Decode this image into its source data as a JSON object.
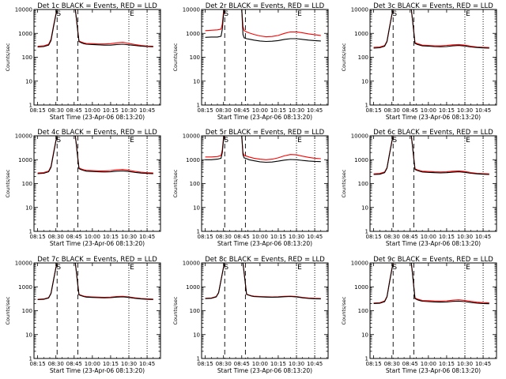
{
  "figure": {
    "xlabel": "Start Time (23-Apr-06 08:13:20)",
    "ylabel": "Counts/sec",
    "x_ticks": [
      "08:15",
      "08:30",
      "08:45",
      "10:00",
      "10:15",
      "10:30",
      "10:45"
    ],
    "y_ticks": [
      "1",
      "10",
      "100",
      "1000",
      "10000"
    ],
    "marker_labels": [
      "S",
      "E"
    ],
    "colors": {
      "events": "#000000",
      "lld": "#ff0000",
      "axes": "#000000"
    }
  },
  "chart_data": [
    {
      "type": "line",
      "title": "Det 1c BLACK = Events, RED = LLD",
      "ylim": [
        1,
        10000
      ],
      "y_scale": "log",
      "x_minutes": [
        0,
        5,
        9,
        11,
        13,
        15,
        16,
        18,
        20,
        30,
        31,
        33,
        34,
        36,
        38,
        40,
        45,
        50,
        55,
        60,
        65,
        70,
        75,
        80,
        85,
        90,
        95
      ],
      "series": [
        {
          "name": "Events",
          "values": [
            270,
            280,
            320,
            500,
            1800,
            6000,
            10000,
            10000,
            10000,
            10000,
            10000,
            1200,
            450,
            400,
            370,
            350,
            340,
            330,
            320,
            320,
            340,
            350,
            330,
            310,
            290,
            280,
            275
          ]
        },
        {
          "name": "LLD",
          "values": [
            290,
            300,
            350,
            560,
            2000,
            6500,
            10000,
            10000,
            10000,
            10000,
            10000,
            1300,
            480,
            430,
            400,
            380,
            370,
            360,
            360,
            370,
            400,
            420,
            380,
            340,
            310,
            295,
            290
          ]
        }
      ]
    },
    {
      "type": "line",
      "title": "Det 2r BLACK = Events, RED = LLD",
      "ylim": [
        1,
        10000
      ],
      "y_scale": "log",
      "x_minutes": [
        0,
        5,
        10,
        13,
        14,
        15,
        16,
        17,
        18,
        20,
        30,
        31,
        32,
        34,
        36,
        40,
        45,
        50,
        55,
        60,
        65,
        70,
        75,
        80,
        85,
        90,
        95
      ],
      "series": [
        {
          "name": "Events",
          "values": [
            680,
            700,
            700,
            760,
            1500,
            6000,
            10000,
            10000,
            10000,
            10000,
            10000,
            900,
            650,
            600,
            570,
            520,
            480,
            460,
            470,
            500,
            560,
            600,
            600,
            560,
            520,
            500,
            480
          ]
        },
        {
          "name": "LLD",
          "values": [
            1300,
            1350,
            1400,
            1500,
            2500,
            8000,
            10000,
            10000,
            10000,
            10000,
            10000,
            2000,
            1300,
            1150,
            1050,
            900,
            780,
            720,
            740,
            820,
            1000,
            1150,
            1150,
            1050,
            950,
            880,
            820
          ]
        }
      ]
    },
    {
      "type": "line",
      "title": "Det 3c BLACK = Events, RED = LLD",
      "ylim": [
        1,
        10000
      ],
      "y_scale": "log",
      "x_minutes": [
        0,
        5,
        9,
        11,
        13,
        15,
        16,
        18,
        20,
        30,
        31,
        33,
        34,
        36,
        38,
        40,
        45,
        50,
        55,
        60,
        65,
        70,
        75,
        80,
        85,
        90,
        95
      ],
      "series": [
        {
          "name": "Events",
          "values": [
            240,
            250,
            290,
            450,
            1700,
            6000,
            10000,
            10000,
            10000,
            10000,
            10000,
            1100,
            380,
            340,
            320,
            300,
            290,
            280,
            275,
            280,
            300,
            310,
            295,
            270,
            255,
            245,
            240
          ]
        },
        {
          "name": "LLD",
          "values": [
            260,
            270,
            310,
            480,
            1800,
            6200,
            10000,
            10000,
            10000,
            10000,
            10000,
            1200,
            410,
            370,
            345,
            320,
            310,
            300,
            300,
            310,
            330,
            340,
            320,
            290,
            270,
            260,
            255
          ]
        }
      ]
    },
    {
      "type": "line",
      "title": "Det 4c BLACK = Events, RED = LLD",
      "ylim": [
        1,
        10000
      ],
      "y_scale": "log",
      "x_minutes": [
        0,
        5,
        9,
        11,
        13,
        15,
        16,
        18,
        20,
        30,
        31,
        33,
        34,
        36,
        38,
        40,
        45,
        50,
        55,
        60,
        65,
        70,
        75,
        80,
        85,
        90,
        95
      ],
      "series": [
        {
          "name": "Events",
          "values": [
            260,
            270,
            310,
            480,
            1700,
            6000,
            10000,
            10000,
            10000,
            10000,
            10000,
            1150,
            420,
            380,
            350,
            330,
            320,
            310,
            305,
            310,
            330,
            340,
            320,
            295,
            275,
            265,
            260
          ]
        },
        {
          "name": "LLD",
          "values": [
            280,
            290,
            335,
            520,
            1900,
            6400,
            10000,
            10000,
            10000,
            10000,
            10000,
            1250,
            450,
            410,
            380,
            360,
            350,
            340,
            340,
            350,
            375,
            390,
            360,
            325,
            300,
            285,
            280
          ]
        }
      ]
    },
    {
      "type": "line",
      "title": "Det 5r BLACK = Events, RED = LLD",
      "ylim": [
        1,
        10000
      ],
      "y_scale": "log",
      "x_minutes": [
        0,
        5,
        10,
        13,
        14,
        15,
        16,
        17,
        18,
        20,
        30,
        31,
        32,
        34,
        36,
        40,
        45,
        50,
        55,
        60,
        65,
        70,
        75,
        80,
        85,
        90,
        95
      ],
      "series": [
        {
          "name": "Events",
          "values": [
            1000,
            1000,
            1050,
            1150,
            2000,
            7000,
            10000,
            10000,
            10000,
            10000,
            10000,
            1600,
            1200,
            1100,
            1000,
            900,
            820,
            780,
            800,
            870,
            960,
            1020,
            1000,
            930,
            880,
            850,
            830
          ]
        },
        {
          "name": "LLD",
          "values": [
            1300,
            1300,
            1350,
            1500,
            2600,
            8500,
            10000,
            10000,
            10000,
            10000,
            10000,
            2000,
            1500,
            1400,
            1300,
            1150,
            1050,
            1000,
            1050,
            1200,
            1450,
            1650,
            1600,
            1400,
            1250,
            1150,
            1100
          ]
        }
      ]
    },
    {
      "type": "line",
      "title": "Det 6c BLACK = Events, RED = LLD",
      "ylim": [
        1,
        10000
      ],
      "y_scale": "log",
      "x_minutes": [
        0,
        5,
        9,
        11,
        13,
        15,
        16,
        18,
        20,
        30,
        31,
        33,
        34,
        36,
        38,
        40,
        45,
        50,
        55,
        60,
        65,
        70,
        75,
        80,
        85,
        90,
        95
      ],
      "series": [
        {
          "name": "Events",
          "values": [
            240,
            245,
            285,
            440,
            1650,
            5800,
            10000,
            10000,
            10000,
            10000,
            10000,
            1100,
            390,
            350,
            325,
            305,
            295,
            285,
            280,
            285,
            300,
            310,
            295,
            270,
            255,
            245,
            240
          ]
        },
        {
          "name": "LLD",
          "values": [
            255,
            265,
            305,
            470,
            1750,
            6100,
            10000,
            10000,
            10000,
            10000,
            10000,
            1180,
            415,
            375,
            350,
            330,
            320,
            310,
            305,
            310,
            330,
            340,
            320,
            290,
            270,
            260,
            255
          ]
        }
      ]
    },
    {
      "type": "line",
      "title": "Det 7c BLACK = Events, RED = LLD",
      "ylim": [
        1,
        10000
      ],
      "y_scale": "log",
      "x_minutes": [
        0,
        5,
        9,
        11,
        13,
        15,
        16,
        18,
        20,
        30,
        31,
        33,
        34,
        36,
        38,
        40,
        45,
        50,
        55,
        60,
        65,
        70,
        75,
        80,
        85,
        90,
        95
      ],
      "series": [
        {
          "name": "Events",
          "values": [
            290,
            300,
            340,
            520,
            1800,
            6200,
            10000,
            10000,
            10000,
            10000,
            10000,
            1200,
            460,
            420,
            390,
            370,
            360,
            350,
            345,
            350,
            370,
            380,
            360,
            330,
            310,
            300,
            295
          ]
        },
        {
          "name": "LLD",
          "values": [
            300,
            310,
            355,
            545,
            1900,
            6400,
            10000,
            10000,
            10000,
            10000,
            10000,
            1250,
            480,
            440,
            410,
            390,
            380,
            370,
            365,
            370,
            390,
            400,
            380,
            345,
            325,
            315,
            305
          ]
        }
      ]
    },
    {
      "type": "line",
      "title": "Det 8c BLACK = Events, RED = LLD",
      "ylim": [
        1,
        10000
      ],
      "y_scale": "log",
      "x_minutes": [
        0,
        5,
        9,
        11,
        13,
        15,
        16,
        18,
        20,
        30,
        31,
        33,
        34,
        36,
        38,
        40,
        45,
        50,
        55,
        60,
        65,
        70,
        75,
        80,
        85,
        90,
        95
      ],
      "series": [
        {
          "name": "Events",
          "values": [
            320,
            330,
            380,
            560,
            1900,
            6500,
            10000,
            10000,
            10000,
            10000,
            10000,
            1300,
            480,
            440,
            410,
            390,
            380,
            370,
            365,
            370,
            385,
            395,
            375,
            345,
            325,
            315,
            310
          ]
        },
        {
          "name": "LLD",
          "values": [
            330,
            340,
            395,
            580,
            1950,
            6700,
            10000,
            10000,
            10000,
            10000,
            10000,
            1350,
            495,
            455,
            425,
            405,
            395,
            385,
            380,
            385,
            400,
            410,
            390,
            360,
            340,
            330,
            325
          ]
        }
      ]
    },
    {
      "type": "line",
      "title": "Det 9c BLACK = Events, RED = LLD",
      "ylim": [
        1,
        10000
      ],
      "y_scale": "log",
      "x_minutes": [
        0,
        5,
        9,
        11,
        13,
        15,
        16,
        18,
        20,
        30,
        31,
        33,
        34,
        36,
        38,
        40,
        45,
        50,
        55,
        60,
        65,
        70,
        75,
        80,
        85,
        90,
        95
      ],
      "series": [
        {
          "name": "Events",
          "values": [
            200,
            205,
            240,
            380,
            1500,
            5500,
            10000,
            10000,
            10000,
            10000,
            10000,
            1000,
            320,
            285,
            265,
            250,
            240,
            232,
            228,
            232,
            245,
            252,
            240,
            220,
            208,
            200,
            196
          ]
        },
        {
          "name": "LLD",
          "values": [
            210,
            215,
            255,
            400,
            1600,
            5800,
            10000,
            10000,
            10000,
            10000,
            10000,
            1050,
            340,
            305,
            285,
            270,
            262,
            255,
            252,
            258,
            275,
            285,
            270,
            245,
            228,
            218,
            212
          ]
        }
      ]
    }
  ]
}
